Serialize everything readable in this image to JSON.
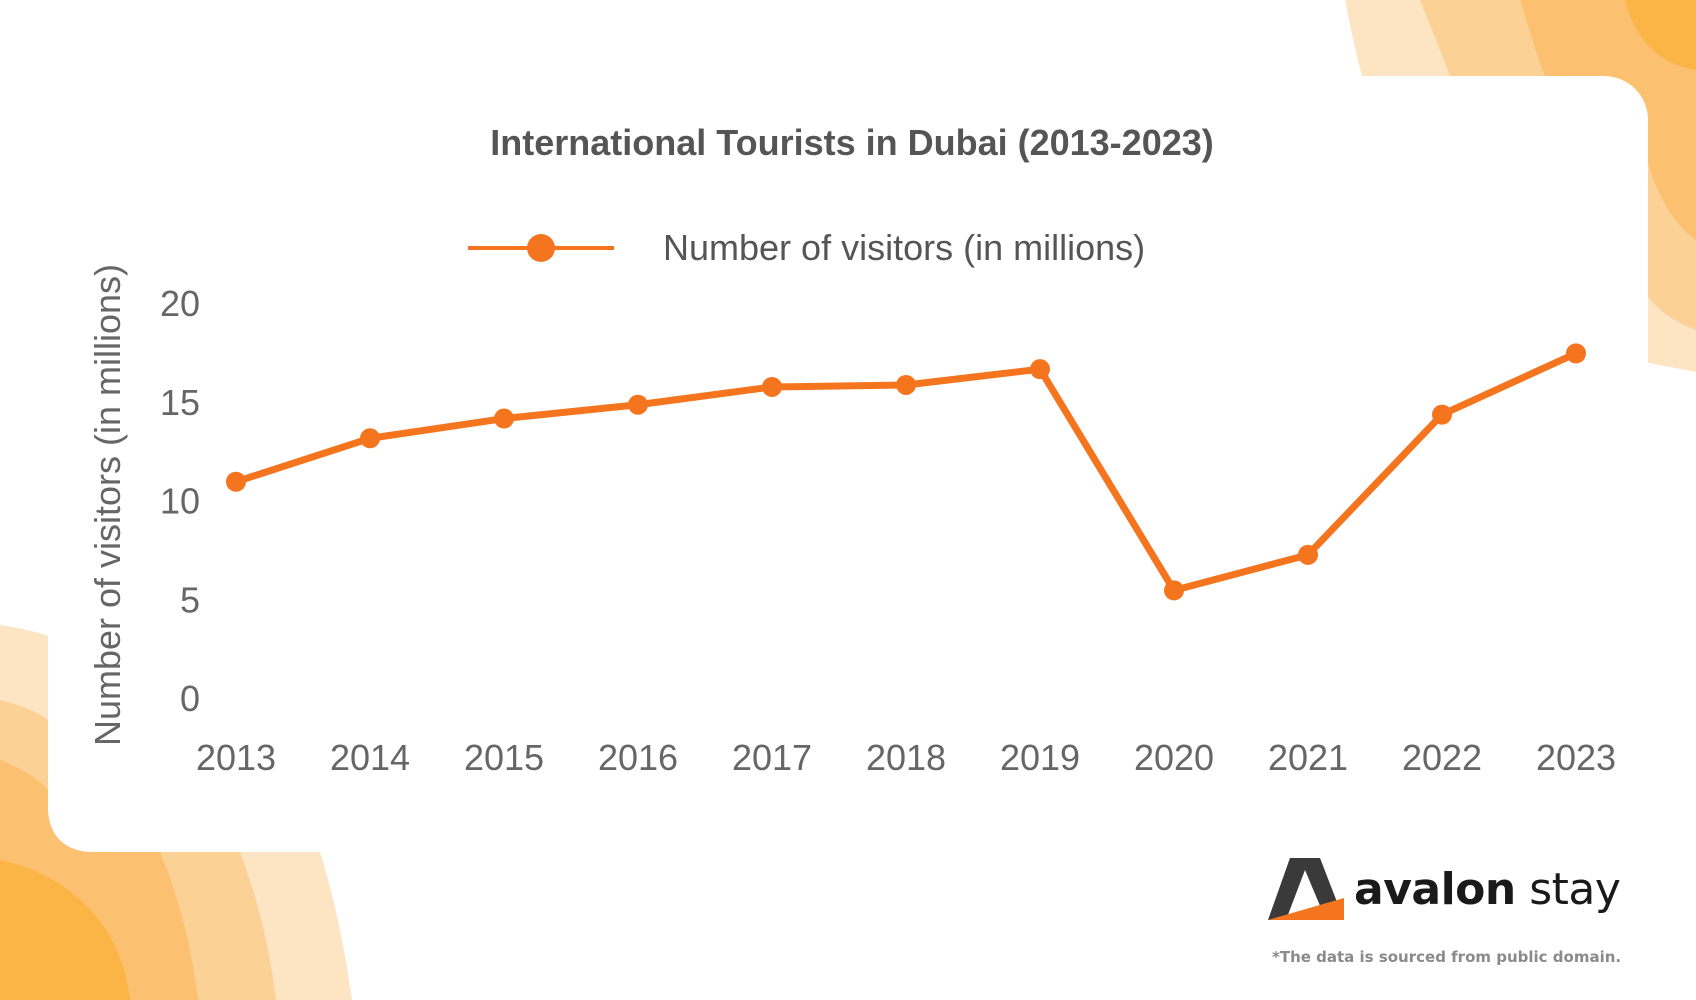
{
  "brand": {
    "name_bold": "avalon",
    "name_light": "stay"
  },
  "footnote": "*The data is sourced from public domain.",
  "colors": {
    "line": "#f5751f",
    "axis_text": "#666666",
    "title_text": "#555555",
    "deco_light": "#fde5c4",
    "deco_mid": "#fcd196",
    "deco_dark": "#fbb546"
  },
  "chart_data": {
    "type": "line",
    "title": "International Tourists in Dubai (2013-2023)",
    "xlabel": "",
    "ylabel": "Number of visitors (in millions)",
    "ylim": [
      0,
      20
    ],
    "yticks": [
      0,
      5,
      10,
      15,
      20
    ],
    "legend": "top-center",
    "categories": [
      "2013",
      "2014",
      "2015",
      "2016",
      "2017",
      "2018",
      "2019",
      "2020",
      "2021",
      "2022",
      "2023"
    ],
    "series": [
      {
        "name": "Number of visitors (in millions)",
        "values": [
          11.0,
          13.2,
          14.2,
          14.9,
          15.8,
          15.9,
          16.7,
          5.5,
          7.3,
          14.4,
          17.5
        ]
      }
    ]
  }
}
